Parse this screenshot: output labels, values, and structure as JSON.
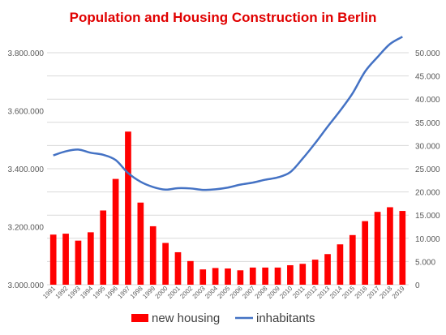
{
  "chart_data": {
    "type": "bar+line",
    "title": "Population and Housing Construction in Berlin",
    "categories": [
      "1991",
      "1992",
      "1993",
      "1994",
      "1995",
      "1996",
      "1997",
      "1998",
      "1999",
      "2000",
      "2001",
      "2002",
      "2003",
      "2004",
      "2005",
      "2006",
      "2007",
      "2008",
      "2009",
      "2010",
      "2011",
      "2012",
      "2013",
      "2014",
      "2015",
      "2016",
      "2017",
      "2018",
      "2019"
    ],
    "series": [
      {
        "name": "new housing",
        "type": "bar",
        "axis": "right",
        "color": "#ff0000",
        "values": [
          10800,
          11000,
          9500,
          11300,
          16000,
          22800,
          33000,
          17700,
          12600,
          9000,
          7000,
          5100,
          3300,
          3600,
          3500,
          3100,
          3700,
          3700,
          3700,
          4200,
          4500,
          5400,
          6600,
          8700,
          10700,
          13700,
          15700,
          16700,
          15900
        ]
      },
      {
        "name": "inhabitants",
        "type": "line",
        "axis": "left",
        "color": "#4472c4",
        "values": [
          3446000,
          3460000,
          3466000,
          3455000,
          3448000,
          3430000,
          3385000,
          3355000,
          3337000,
          3328000,
          3333000,
          3332000,
          3327000,
          3329000,
          3335000,
          3345000,
          3352000,
          3362000,
          3370000,
          3388000,
          3435000,
          3488000,
          3545000,
          3600000,
          3660000,
          3735000,
          3785000,
          3830000,
          3855000
        ]
      }
    ],
    "y_left": {
      "min": 3000000,
      "max": 3800000,
      "ticks": [
        3000000,
        3200000,
        3400000,
        3600000,
        3800000
      ],
      "tick_labels": [
        "3.000.000",
        "3.200.000",
        "3.400.000",
        "3.600.000",
        "3.800.000"
      ]
    },
    "y_right": {
      "min": 0,
      "max": 50000,
      "ticks": [
        0,
        5000,
        10000,
        15000,
        20000,
        25000,
        30000,
        35000,
        40000,
        45000,
        50000
      ],
      "tick_labels": [
        "0",
        "5.000",
        "10.000",
        "15.000",
        "20.000",
        "25.000",
        "30.000",
        "35.000",
        "40.000",
        "45.000",
        "50.000"
      ]
    },
    "grid": true,
    "legend": "bottom",
    "legend_entries": [
      "new housing",
      "inhabitants"
    ]
  }
}
